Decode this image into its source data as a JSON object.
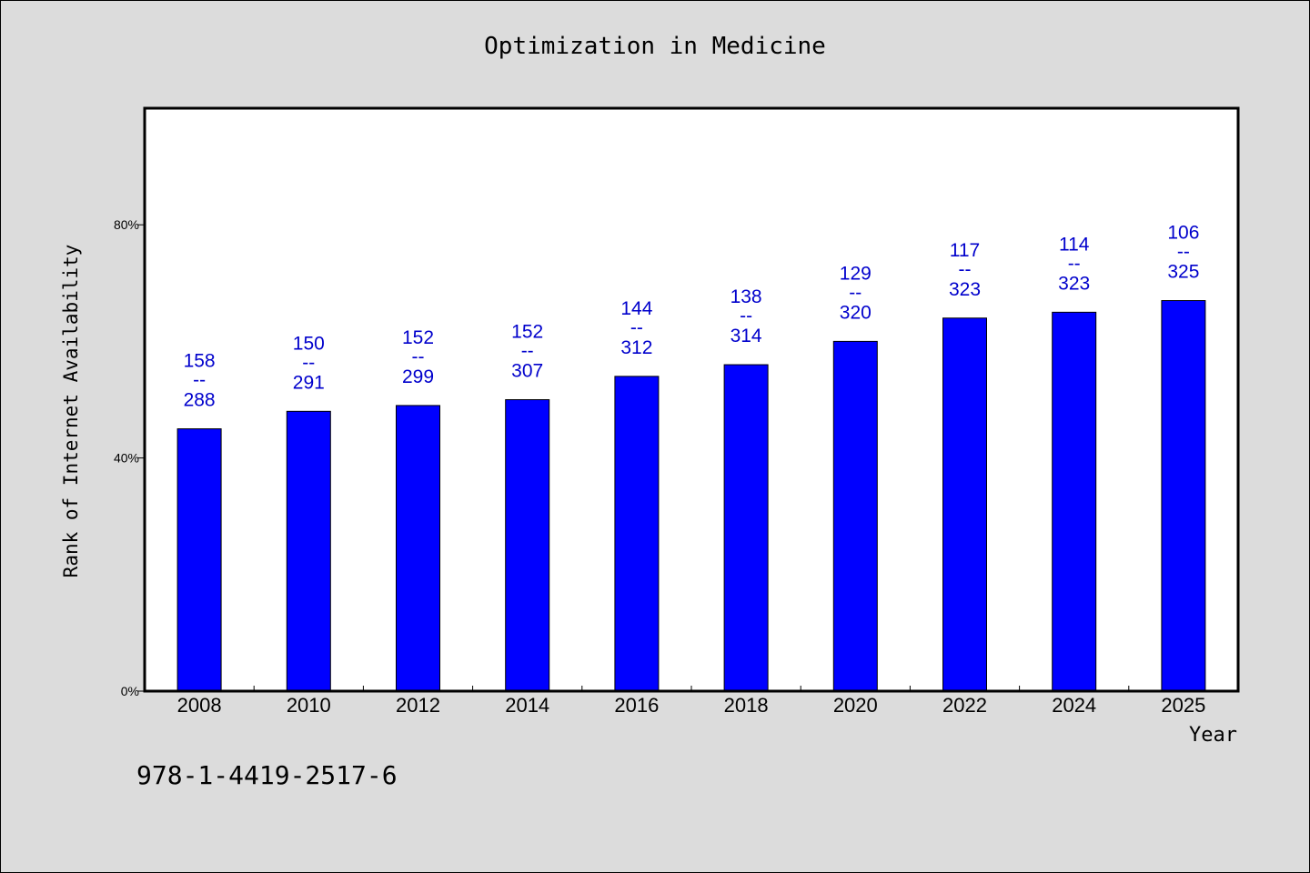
{
  "chart_data": {
    "type": "bar",
    "title": "Optimization in Medicine",
    "xlabel": "Year",
    "ylabel": "Rank of Internet Availability",
    "categories": [
      "2008",
      "2010",
      "2012",
      "2014",
      "2016",
      "2018",
      "2020",
      "2022",
      "2024",
      "2025"
    ],
    "values": [
      45,
      48,
      49,
      50,
      54,
      56,
      60,
      64,
      65,
      67
    ],
    "bar_labels": [
      {
        "top": "158",
        "sep": "--",
        "bottom": "288"
      },
      {
        "top": "150",
        "sep": "--",
        "bottom": "291"
      },
      {
        "top": "152",
        "sep": "--",
        "bottom": "299"
      },
      {
        "top": "152",
        "sep": "--",
        "bottom": "307"
      },
      {
        "top": "144",
        "sep": "--",
        "bottom": "312"
      },
      {
        "top": "138",
        "sep": "--",
        "bottom": "314"
      },
      {
        "top": "129",
        "sep": "--",
        "bottom": "320"
      },
      {
        "top": "117",
        "sep": "--",
        "bottom": "323"
      },
      {
        "top": "114",
        "sep": "--",
        "bottom": "323"
      },
      {
        "top": "106",
        "sep": "--",
        "bottom": "325"
      }
    ],
    "ylim": [
      0,
      100
    ],
    "yticks": [
      0,
      40,
      80
    ],
    "ytick_labels": [
      "0%",
      "40%",
      "80%"
    ],
    "grid": false,
    "bar_color": "#0000ff",
    "label_color": "#0000cc"
  },
  "footnote": "978-1-4419-2517-6"
}
